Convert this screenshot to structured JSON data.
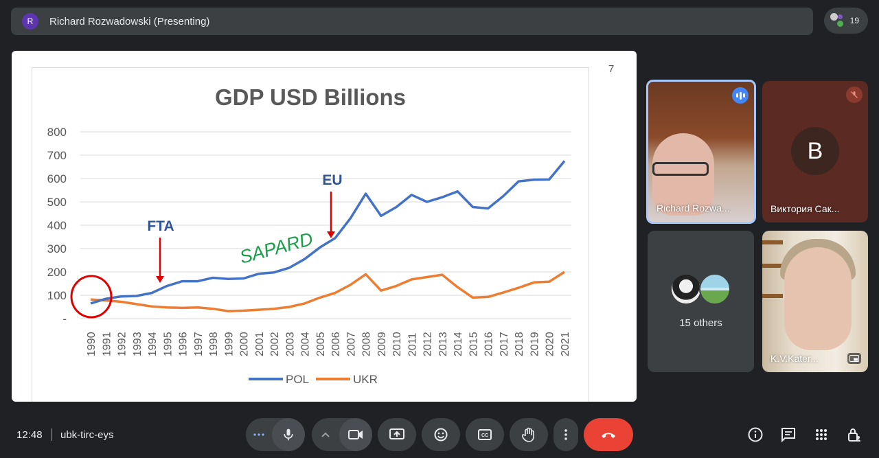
{
  "topbar": {
    "avatar_initial": "R",
    "presenter_title": "Richard Rozwadowski (Presenting)",
    "participant_count": "19"
  },
  "slide": {
    "page_number": "7",
    "annotations": {
      "fta": "FTA",
      "eu": "EU",
      "sapard": "SAPARD"
    }
  },
  "chart_data": {
    "type": "line",
    "title": "GDP USD Billions",
    "x": [
      "1990",
      "1991",
      "1992",
      "1993",
      "1994",
      "1995",
      "1996",
      "1997",
      "1998",
      "1999",
      "2000",
      "2001",
      "2002",
      "2003",
      "2004",
      "2005",
      "2006",
      "2007",
      "2008",
      "2009",
      "2010",
      "2011",
      "2012",
      "2013",
      "2014",
      "2015",
      "2016",
      "2017",
      "2018",
      "2019",
      "2020",
      "2021"
    ],
    "y_tick_labels": [
      "-",
      "100",
      "200",
      "300",
      "400",
      "500",
      "600",
      "700",
      "800"
    ],
    "ylim": [
      0,
      800
    ],
    "series": [
      {
        "name": "POL",
        "color": "#4472c4",
        "values": [
          65,
          85,
          95,
          97,
          110,
          140,
          160,
          160,
          175,
          170,
          172,
          192,
          198,
          218,
          255,
          305,
          345,
          430,
          535,
          440,
          478,
          530,
          500,
          520,
          545,
          478,
          472,
          525,
          588,
          595,
          596,
          675
        ]
      },
      {
        "name": "UKR",
        "color": "#ed7d31",
        "values": [
          82,
          78,
          72,
          62,
          52,
          48,
          46,
          48,
          42,
          32,
          34,
          38,
          42,
          50,
          65,
          90,
          110,
          145,
          190,
          120,
          140,
          168,
          178,
          188,
          135,
          90,
          93,
          112,
          132,
          155,
          158,
          200
        ]
      }
    ],
    "legend_position": "bottom",
    "grid": true
  },
  "tiles": [
    {
      "name": "Richard Rozwa..."
    },
    {
      "name": "Виктория Сак...",
      "initial": "B"
    },
    {
      "label": "15 others"
    },
    {
      "name": "K.V.Kater..."
    }
  ],
  "bottombar": {
    "time": "12:48",
    "meeting_code": "ubk-tirc-eys"
  },
  "colors": {
    "background": "#202124",
    "surface": "#3c4043",
    "end_call": "#ea4335",
    "speaking": "#4285f4",
    "speaking_border": "#a8c7fa"
  }
}
